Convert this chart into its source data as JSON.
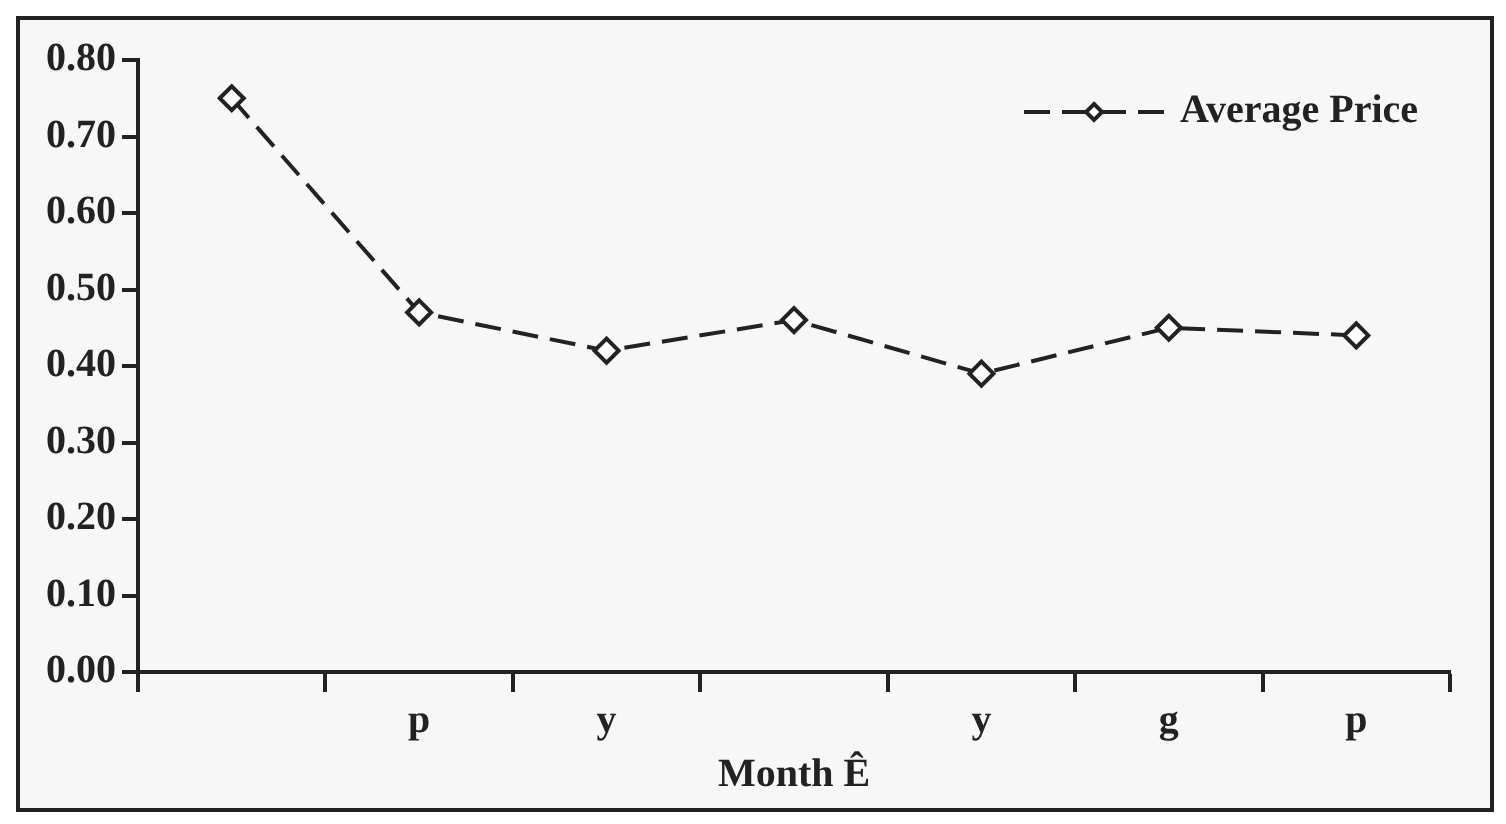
{
  "chart_data": {
    "type": "line",
    "xlabel": "Month Ê",
    "categories": [
      null,
      "p",
      "y",
      null,
      "y",
      "g",
      "p"
    ],
    "series": [
      {
        "name": "Average Price",
        "color": "#222222",
        "values": [
          0.75,
          0.47,
          0.42,
          0.46,
          0.39,
          0.45,
          0.44
        ]
      }
    ],
    "ylim": [
      0,
      0.8
    ],
    "yticks": [
      {
        "value": 0,
        "label": "0.00"
      },
      {
        "value": 0.1,
        "label": "0.10"
      },
      {
        "value": 0.2,
        "label": "0.20"
      },
      {
        "value": 0.3,
        "label": "0.30"
      },
      {
        "value": 0.4,
        "label": "0.40"
      },
      {
        "value": 0.5,
        "label": "0.50"
      },
      {
        "value": 0.6,
        "label": "0.60"
      },
      {
        "value": 0.7,
        "label": "0.70"
      },
      {
        "value": 0.8,
        "label": "0.80"
      }
    ],
    "grid": false,
    "legend": "top right",
    "marker": "diamond",
    "line_style": "dashed"
  }
}
